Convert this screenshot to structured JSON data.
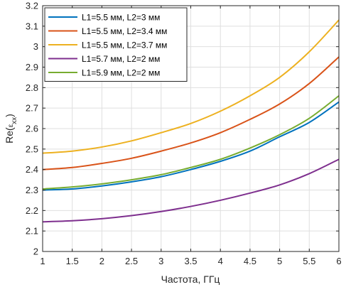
{
  "chart_data": {
    "type": "line",
    "title": "",
    "xlabel": "Частота, ГГц",
    "ylabel_prefix": "Re(",
    "ylabel_symbol": "ε",
    "ylabel_subscript": "xx",
    "ylabel_suffix": ")",
    "xlim": [
      1,
      6
    ],
    "ylim": [
      2.0,
      3.2
    ],
    "grid": true,
    "legend_position": "top-left",
    "x_ticks": [
      "1",
      "1.5",
      "2",
      "2.5",
      "3",
      "3.5",
      "4",
      "4.5",
      "5",
      "5.5",
      "6"
    ],
    "y_ticks": [
      "2",
      "2.1",
      "2.2",
      "2.3",
      "2.4",
      "2.5",
      "2.6",
      "2.7",
      "2.8",
      "2.9",
      "3",
      "3.1",
      "3.2"
    ],
    "x": [
      1,
      1.5,
      2,
      2.5,
      3,
      3.5,
      4,
      4.5,
      5,
      5.5,
      6
    ],
    "series": [
      {
        "name": "L1=5.5 мм, L2=3 мм",
        "color": "#0072BD",
        "values": [
          2.3,
          2.305,
          2.32,
          2.34,
          2.365,
          2.4,
          2.44,
          2.49,
          2.56,
          2.63,
          2.73
        ]
      },
      {
        "name": "L1=5.5 мм, L2=3.4 мм",
        "color": "#D95319",
        "values": [
          2.4,
          2.41,
          2.43,
          2.455,
          2.49,
          2.53,
          2.58,
          2.645,
          2.72,
          2.82,
          2.95
        ]
      },
      {
        "name": "L1=5.5 мм, L2=3.7 мм",
        "color": "#EDB120",
        "values": [
          2.48,
          2.49,
          2.51,
          2.54,
          2.58,
          2.625,
          2.685,
          2.76,
          2.85,
          2.975,
          3.13
        ]
      },
      {
        "name": "L1=5.7 мм, L2=2 мм",
        "color": "#7E2F8E",
        "values": [
          2.145,
          2.15,
          2.16,
          2.175,
          2.195,
          2.22,
          2.25,
          2.285,
          2.325,
          2.38,
          2.45
        ]
      },
      {
        "name": "L1=5.9 мм, L2=2 мм",
        "color": "#77AC30",
        "values": [
          2.305,
          2.315,
          2.33,
          2.35,
          2.375,
          2.41,
          2.45,
          2.505,
          2.57,
          2.65,
          2.76
        ]
      }
    ]
  }
}
